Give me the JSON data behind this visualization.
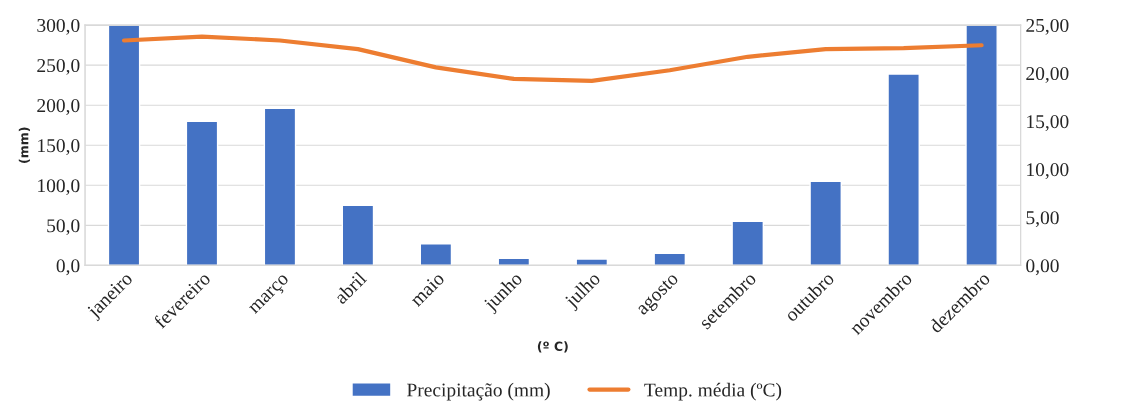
{
  "chart_data": {
    "type": "bar",
    "categories": [
      "janeiro",
      "fevereiro",
      "março",
      "abril",
      "maio",
      "junho",
      "julho",
      "agosto",
      "setembro",
      "outubro",
      "novembro",
      "dezembro"
    ],
    "ylabel": "(mm)",
    "xlabel": "(º C)",
    "series": [
      {
        "name": "Precipitação (mm)",
        "color": "#4472c4",
        "values": [
          300,
          180,
          196,
          75,
          27,
          9,
          8,
          15,
          55,
          105,
          239,
          300
        ]
      },
      {
        "name": "Temp. média (ºC)",
        "type": "line",
        "axis": "y2",
        "color": "#ed7d31",
        "values": [
          23.4,
          23.8,
          23.4,
          22.5,
          20.6,
          19.4,
          19.2,
          20.3,
          21.7,
          22.5,
          22.6,
          22.9
        ]
      }
    ],
    "ylim": [
      0,
      300
    ],
    "yticks": [
      {
        "value": 0,
        "label": "0,0"
      },
      {
        "value": 50,
        "label": "50,0"
      },
      {
        "value": 100,
        "label": "100,0"
      },
      {
        "value": 150,
        "label": "150,0"
      },
      {
        "value": 200,
        "label": "200,0"
      },
      {
        "value": 250,
        "label": "250,0"
      },
      {
        "value": 300,
        "label": "300,0"
      }
    ],
    "y2lim": [
      0,
      25
    ],
    "y2ticks": [
      {
        "value": 0,
        "label": "0,00"
      },
      {
        "value": 5,
        "label": "5,00"
      },
      {
        "value": 10,
        "label": "10,00"
      },
      {
        "value": 15,
        "label": "15,00"
      },
      {
        "value": 20,
        "label": "20,00"
      },
      {
        "value": 25,
        "label": "25,00"
      }
    ],
    "grid": "y",
    "legend": "bottom",
    "marker": "none",
    "line_style": "solid"
  }
}
